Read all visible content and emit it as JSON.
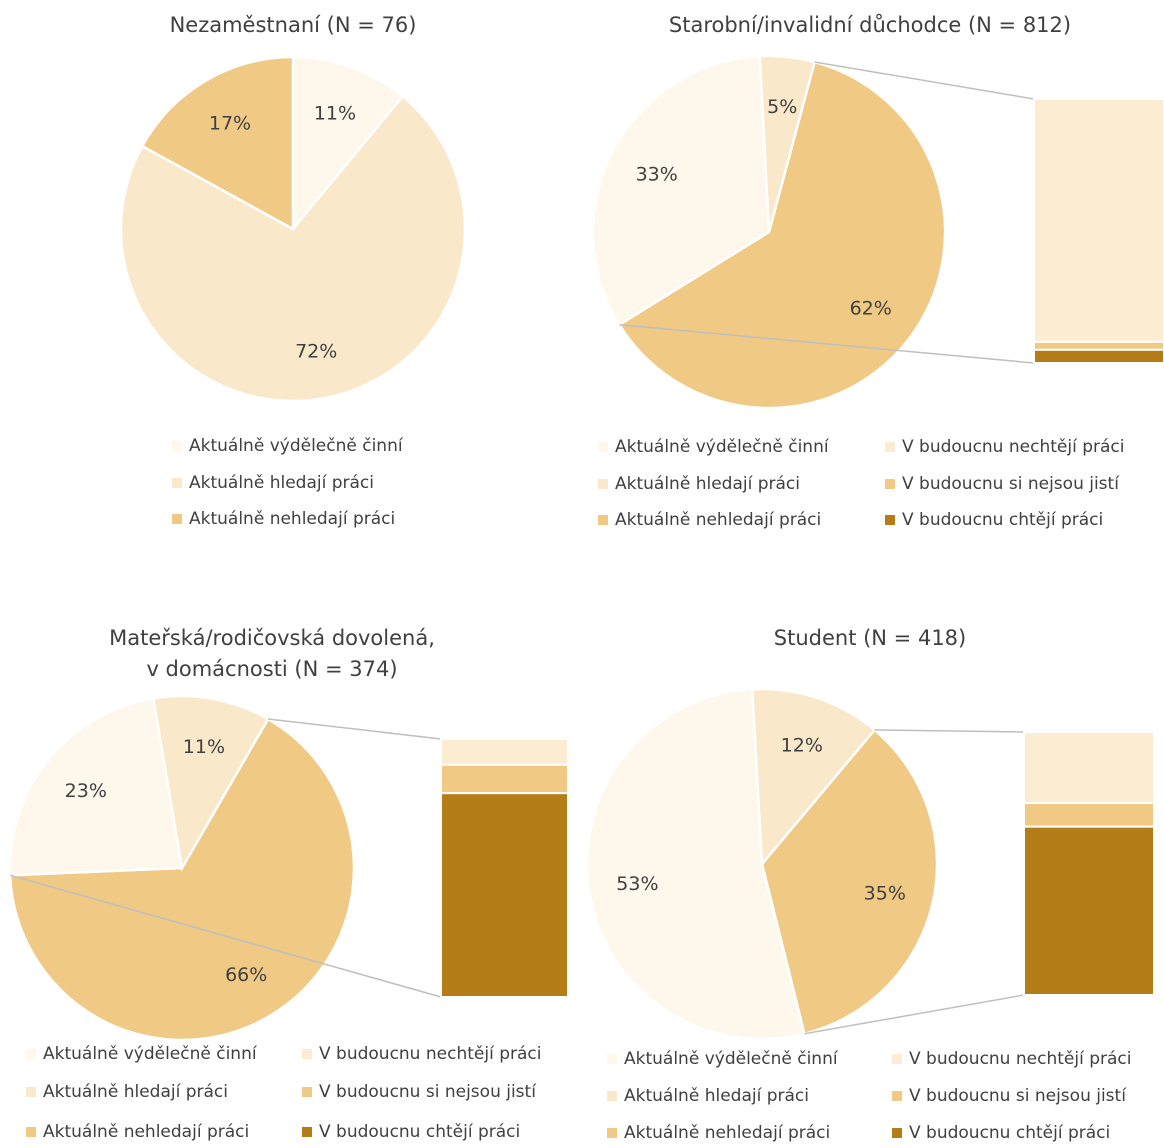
{
  "legend_labels": {
    "employed": "Aktuálně výdělečně činní",
    "seeking": "Aktuálně hledají práci",
    "not_seeking": "Aktuálně nehledají práci",
    "future_no": "V budoucnu nechtějí práci",
    "future_unsure": "V budoucnu si nejsou jistí",
    "future_yes": "V budoucnu chtějí práci"
  },
  "colors": {
    "employed": "#fdf7ec",
    "seeking": "#f9e8c9",
    "not_seeking": "#f0c985",
    "future_no": "#fbecd2",
    "future_unsure": "#f0c985",
    "future_yes": "#b47d17"
  },
  "chart_data": [
    {
      "type": "pie",
      "title": "Nezaměstnaní (N = 76)",
      "slices": [
        {
          "key": "employed",
          "value": 11,
          "label": "11%"
        },
        {
          "key": "seeking",
          "value": 72,
          "label": "72%"
        },
        {
          "key": "not_seeking",
          "value": 17,
          "label": "17%"
        }
      ]
    },
    {
      "type": "pie",
      "title": "Starobní/invalidní důchodce (N = 812)",
      "slices": [
        {
          "key": "not_seeking",
          "value": 62,
          "label": "62%"
        },
        {
          "key": "employed",
          "value": 33,
          "label": "33%"
        },
        {
          "key": "seeking",
          "value": 5,
          "label": "5%"
        }
      ],
      "breakdown": [
        {
          "key": "future_no",
          "value": 92
        },
        {
          "key": "future_unsure",
          "value": 3
        },
        {
          "key": "future_yes",
          "value": 5
        }
      ]
    },
    {
      "type": "pie",
      "title": "Mateřská/rodičovská dovolená,\nv domácnosti (N = 374)",
      "slices": [
        {
          "key": "not_seeking",
          "value": 66,
          "label": "66%"
        },
        {
          "key": "employed",
          "value": 23,
          "label": "23%"
        },
        {
          "key": "seeking",
          "value": 11,
          "label": "11%"
        }
      ],
      "breakdown": [
        {
          "key": "future_no",
          "value": 10
        },
        {
          "key": "future_unsure",
          "value": 11
        },
        {
          "key": "future_yes",
          "value": 79
        }
      ]
    },
    {
      "type": "pie",
      "title": "Student (N = 418)",
      "slices": [
        {
          "key": "not_seeking",
          "value": 35,
          "label": "35%"
        },
        {
          "key": "employed",
          "value": 53,
          "label": "53%"
        },
        {
          "key": "seeking",
          "value": 12,
          "label": "12%"
        }
      ],
      "breakdown": [
        {
          "key": "future_no",
          "value": 27
        },
        {
          "key": "future_unsure",
          "value": 9
        },
        {
          "key": "future_yes",
          "value": 64
        }
      ]
    }
  ]
}
